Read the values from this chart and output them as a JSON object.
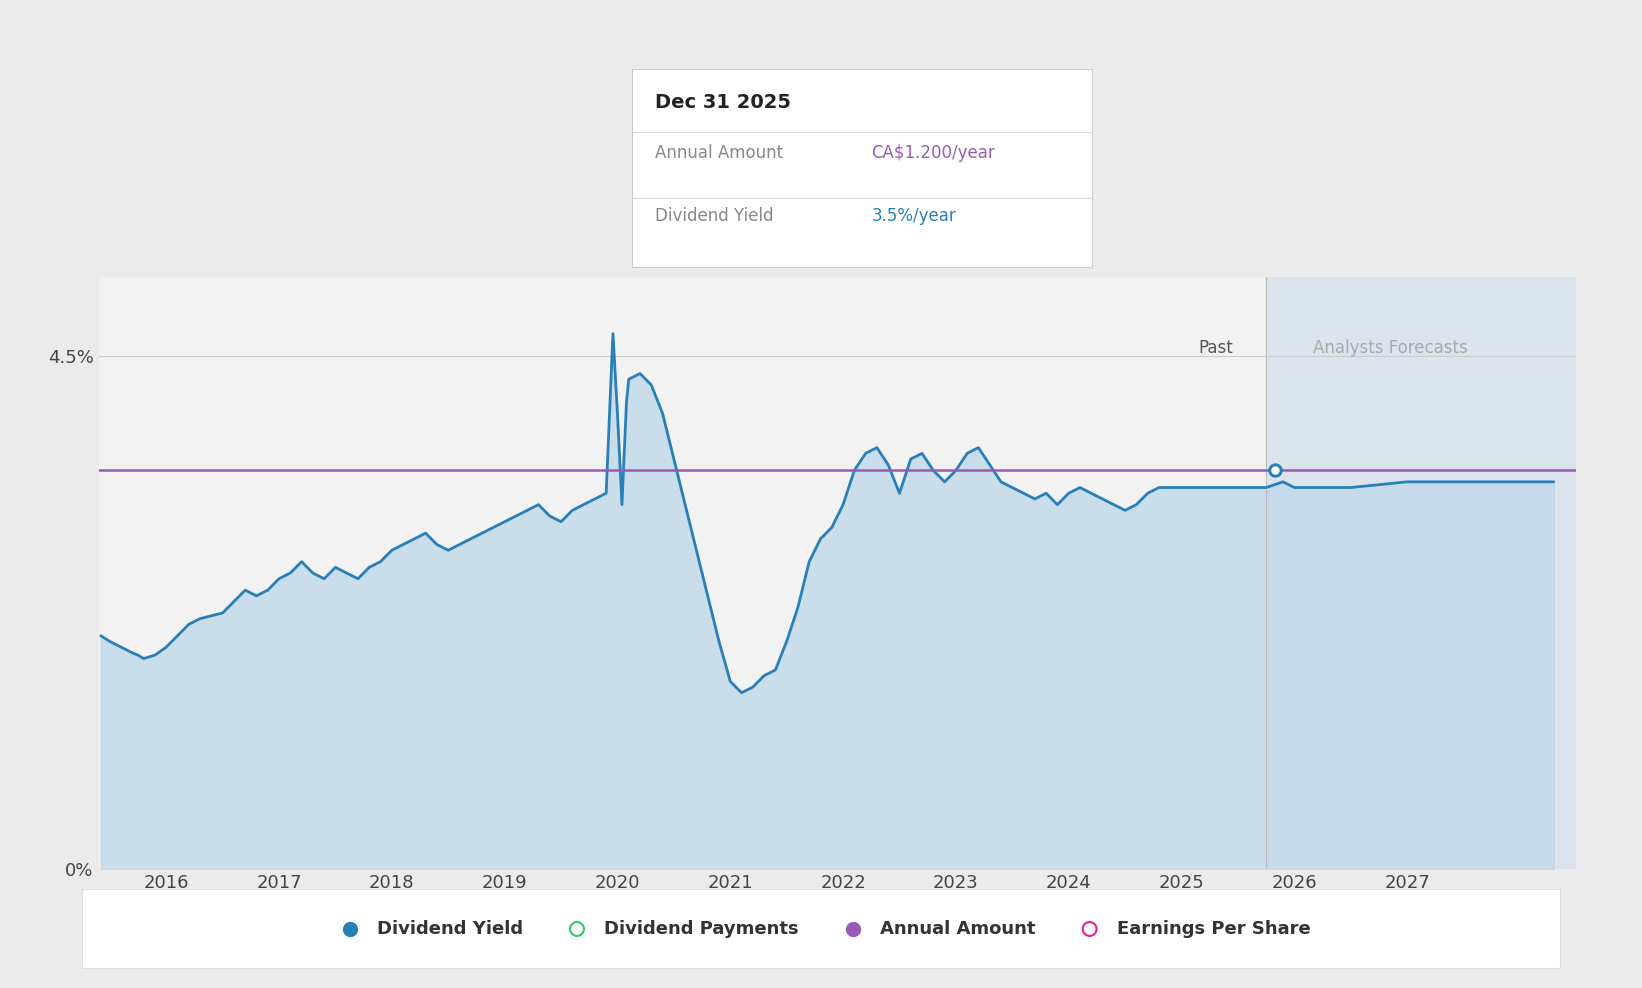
{
  "bg_color": "#ebebeb",
  "plot_bg_color": "#f2f2f2",
  "forecast_bg_color": "#ccd9ea",
  "annual_amount_value": 3.5,
  "annual_amount_color": "#9b59b6",
  "dividend_yield_color": "#2980b9",
  "dividend_yield_fill_top": "#aecde8",
  "dividend_yield_fill_bottom": "#d6e8f5",
  "ylim": [
    0,
    5.2
  ],
  "xlim": [
    2015.4,
    2028.5
  ],
  "ytick_values": [
    0,
    4.5
  ],
  "ytick_labels": [
    "0%",
    "4.5%"
  ],
  "xtick_values": [
    2016,
    2017,
    2018,
    2019,
    2020,
    2021,
    2022,
    2023,
    2024,
    2025,
    2026,
    2027
  ],
  "forecast_start": 2025.75,
  "forecast_end": 2028.5,
  "past_label": "Past",
  "forecast_label": "Analysts Forecasts",
  "tooltip_title": "Dec 31 2025",
  "tooltip_annual_label": "Annual Amount",
  "tooltip_annual_value": "CA$1.200/year",
  "tooltip_annual_color": "#9b59b6",
  "tooltip_yield_label": "Dividend Yield",
  "tooltip_yield_value": "3.5%/year",
  "tooltip_yield_color": "#2980b9",
  "legend_items": [
    "Dividend Yield",
    "Dividend Payments",
    "Annual Amount",
    "Earnings Per Share"
  ],
  "legend_colors": [
    "#2980b9",
    "#2ecc71",
    "#9b59b6",
    "#e91e8c"
  ],
  "legend_filled": [
    true,
    false,
    true,
    false
  ],
  "dividend_yield_x": [
    2015.42,
    2015.5,
    2015.6,
    2015.7,
    2015.75,
    2015.8,
    2015.9,
    2016.0,
    2016.1,
    2016.2,
    2016.3,
    2016.5,
    2016.6,
    2016.7,
    2016.8,
    2016.9,
    2017.0,
    2017.1,
    2017.2,
    2017.3,
    2017.4,
    2017.5,
    2017.6,
    2017.7,
    2017.8,
    2017.9,
    2018.0,
    2018.1,
    2018.2,
    2018.3,
    2018.4,
    2018.5,
    2018.6,
    2018.7,
    2018.8,
    2018.9,
    2019.0,
    2019.1,
    2019.2,
    2019.3,
    2019.4,
    2019.5,
    2019.6,
    2019.7,
    2019.8,
    2019.9,
    2019.93,
    2019.96,
    2020.0,
    2020.04,
    2020.08,
    2020.1,
    2020.2,
    2020.3,
    2020.4,
    2020.5,
    2020.6,
    2020.7,
    2020.8,
    2020.9,
    2021.0,
    2021.1,
    2021.2,
    2021.3,
    2021.4,
    2021.5,
    2021.6,
    2021.7,
    2021.8,
    2021.9,
    2022.0,
    2022.1,
    2022.2,
    2022.3,
    2022.4,
    2022.5,
    2022.6,
    2022.7,
    2022.8,
    2022.9,
    2023.0,
    2023.1,
    2023.2,
    2023.3,
    2023.4,
    2023.5,
    2023.6,
    2023.7,
    2023.8,
    2023.9,
    2024.0,
    2024.1,
    2024.2,
    2024.3,
    2024.4,
    2024.5,
    2024.6,
    2024.7,
    2024.8,
    2024.9,
    2025.0,
    2025.1,
    2025.2,
    2025.3,
    2025.4,
    2025.5,
    2025.6,
    2025.7,
    2025.75,
    2025.9,
    2026.0,
    2026.5,
    2027.0,
    2027.5,
    2028.0,
    2028.3
  ],
  "dividend_yield_y": [
    2.05,
    2.0,
    1.95,
    1.9,
    1.88,
    1.85,
    1.88,
    1.95,
    2.05,
    2.15,
    2.2,
    2.25,
    2.35,
    2.45,
    2.4,
    2.45,
    2.55,
    2.6,
    2.7,
    2.6,
    2.55,
    2.65,
    2.6,
    2.55,
    2.65,
    2.7,
    2.8,
    2.85,
    2.9,
    2.95,
    2.85,
    2.8,
    2.85,
    2.9,
    2.95,
    3.0,
    3.05,
    3.1,
    3.15,
    3.2,
    3.1,
    3.05,
    3.15,
    3.2,
    3.25,
    3.3,
    4.0,
    4.7,
    4.0,
    3.2,
    4.1,
    4.3,
    4.35,
    4.25,
    4.0,
    3.6,
    3.2,
    2.8,
    2.4,
    2.0,
    1.65,
    1.55,
    1.6,
    1.7,
    1.75,
    2.0,
    2.3,
    2.7,
    2.9,
    3.0,
    3.2,
    3.5,
    3.65,
    3.7,
    3.55,
    3.3,
    3.6,
    3.65,
    3.5,
    3.4,
    3.5,
    3.65,
    3.7,
    3.55,
    3.4,
    3.35,
    3.3,
    3.25,
    3.3,
    3.2,
    3.3,
    3.35,
    3.3,
    3.25,
    3.2,
    3.15,
    3.2,
    3.3,
    3.35,
    3.35,
    3.35,
    3.35,
    3.35,
    3.35,
    3.35,
    3.35,
    3.35,
    3.35,
    3.35,
    3.4,
    3.35,
    3.35,
    3.4,
    3.4,
    3.4,
    3.4
  ]
}
